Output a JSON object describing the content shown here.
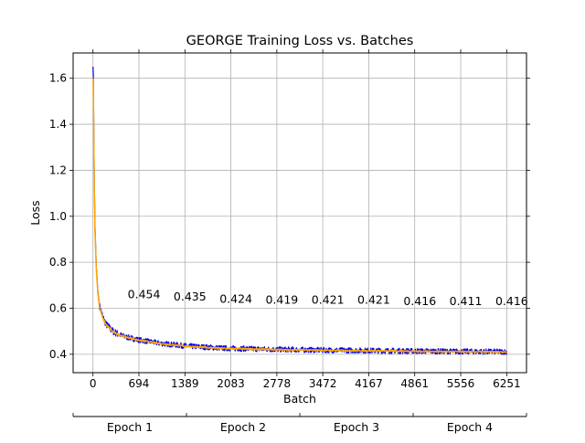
{
  "chart_data": {
    "type": "line",
    "title": "GEORGE Training Loss vs. Batches",
    "xlabel": "Batch",
    "ylabel": "Loss",
    "xlim": [
      -300,
      6550
    ],
    "ylim": [
      0.32,
      1.71
    ],
    "xticks": [
      0,
      694,
      1389,
      2083,
      2778,
      3472,
      4167,
      4861,
      5556,
      6251
    ],
    "yticks": [
      0.4,
      0.6,
      0.8,
      1.0,
      1.2,
      1.4,
      1.6
    ],
    "ytick_labels": [
      "0.4",
      "0.6",
      "0.8",
      "1.0",
      "1.2",
      "1.4",
      "1.6"
    ],
    "grid": true,
    "series": [
      {
        "color": "#0000ee",
        "x": [
          0,
          5,
          10,
          20,
          30,
          50,
          75,
          100,
          150,
          200,
          300,
          400,
          500,
          700,
          1000,
          1400,
          2000,
          2800,
          3500,
          4200,
          4900,
          5600,
          6251
        ],
        "y": [
          1.65,
          1.62,
          1.45,
          1.15,
          0.96,
          0.78,
          0.67,
          0.61,
          0.56,
          0.53,
          0.5,
          0.485,
          0.475,
          0.462,
          0.448,
          0.436,
          0.426,
          0.421,
          0.418,
          0.416,
          0.414,
          0.412,
          0.411
        ],
        "noise_amplitude": 0.012
      },
      {
        "color": "#ffa500",
        "x": [
          0,
          5,
          10,
          20,
          30,
          50,
          75,
          100,
          150,
          200,
          300,
          400,
          500,
          700,
          1000,
          1400,
          2000,
          2800,
          3500,
          4200,
          4900,
          5600,
          6251
        ],
        "y": [
          1.6,
          1.58,
          1.4,
          1.12,
          0.94,
          0.77,
          0.66,
          0.605,
          0.555,
          0.528,
          0.498,
          0.484,
          0.474,
          0.461,
          0.447,
          0.435,
          0.425,
          0.42,
          0.417,
          0.415,
          0.413,
          0.411,
          0.41
        ],
        "noise_amplitude": 0.003
      }
    ],
    "annotations": [
      {
        "x": 771,
        "y": 0.66,
        "text": "0.454"
      },
      {
        "x": 1465,
        "y": 0.65,
        "text": "0.435"
      },
      {
        "x": 2160,
        "y": 0.64,
        "text": "0.424"
      },
      {
        "x": 2854,
        "y": 0.635,
        "text": "0.419"
      },
      {
        "x": 3549,
        "y": 0.635,
        "text": "0.421"
      },
      {
        "x": 4243,
        "y": 0.635,
        "text": "0.421"
      },
      {
        "x": 4938,
        "y": 0.63,
        "text": "0.416"
      },
      {
        "x": 5632,
        "y": 0.63,
        "text": "0.411"
      },
      {
        "x": 6327,
        "y": 0.63,
        "text": "0.416"
      }
    ],
    "epoch_axis": {
      "labels": [
        "Epoch 1",
        "Epoch 2",
        "Epoch 3",
        "Epoch 4"
      ]
    }
  }
}
